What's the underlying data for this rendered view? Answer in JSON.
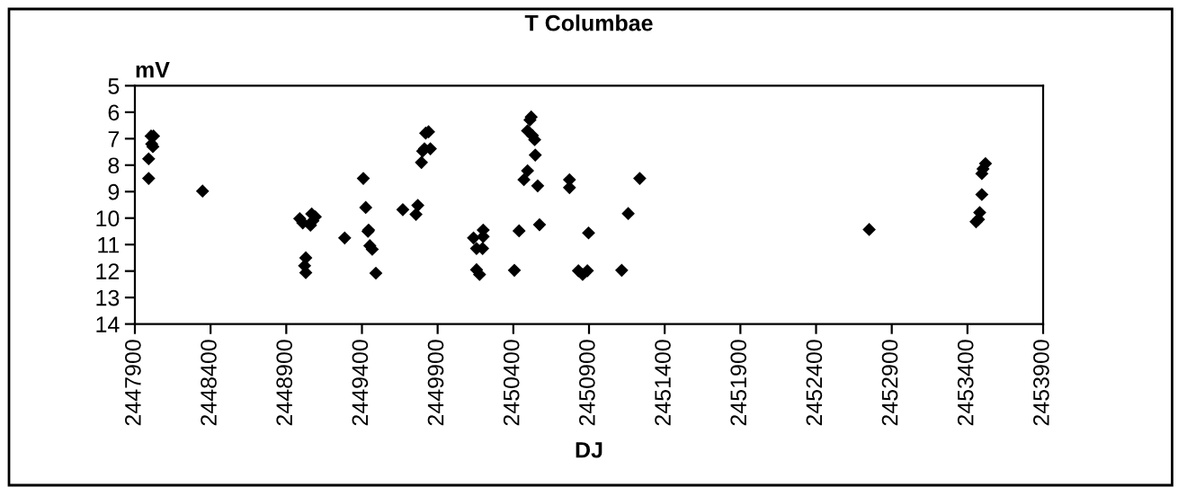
{
  "chart_data": {
    "type": "scatter",
    "title": "T Columbae",
    "xlabel": "DJ",
    "ylabel": "mV",
    "xlim": [
      2447900,
      2453900
    ],
    "xticks": [
      2447900,
      2448400,
      2448900,
      2449400,
      2449900,
      2450400,
      2450900,
      2451400,
      2451900,
      2452400,
      2452900,
      2453400,
      2453900
    ],
    "ylim": [
      14,
      5
    ],
    "yticks": [
      5,
      6,
      7,
      8,
      9,
      10,
      11,
      12,
      13,
      14
    ],
    "marker": "diamond",
    "grid": false,
    "series": [
      {
        "color": "#000000",
        "x": [
          2447991,
          2447991,
          2448007,
          2448023,
          2448011,
          2448019,
          2448347,
          2448989,
          2449009,
          2449068,
          2449076,
          2449060,
          2449092,
          2449029,
          2449021,
          2449029,
          2449286,
          2449409,
          2449425,
          2449440,
          2449444,
          2449452,
          2449468,
          2449492,
          2449670,
          2449769,
          2449757,
          2449793,
          2449801,
          2449813,
          2449852,
          2449821,
          2449840,
          2450137,
          2450157,
          2450197,
          2450157,
          2450177,
          2450201,
          2450201,
          2450407,
          2450438,
          2450470,
          2450494,
          2450518,
          2450510,
          2450494,
          2450526,
          2450541,
          2450545,
          2450561,
          2450573,
          2450771,
          2450771,
          2450830,
          2450858,
          2450889,
          2450897,
          2451116,
          2451159,
          2451235,
          2452751,
          2453457,
          2453473,
          2453481,
          2453495,
          2453495,
          2453503,
          2453519
        ],
        "values": [
          7.76,
          8.5,
          6.9,
          6.9,
          7.2,
          7.3,
          8.98,
          10.02,
          10.18,
          9.84,
          10.1,
          10.27,
          9.95,
          12.06,
          11.8,
          11.5,
          10.75,
          8.5,
          9.6,
          10.5,
          10.45,
          11.04,
          11.18,
          12.08,
          9.68,
          9.52,
          9.86,
          7.9,
          7.47,
          7.38,
          7.38,
          6.79,
          6.74,
          10.75,
          11.15,
          11.15,
          11.95,
          12.13,
          10.7,
          10.45,
          11.97,
          10.48,
          8.55,
          8.21,
          6.18,
          6.29,
          6.7,
          6.88,
          7.04,
          7.62,
          8.78,
          10.25,
          8.55,
          8.85,
          11.99,
          12.13,
          11.99,
          10.56,
          11.97,
          9.83,
          8.5,
          10.43,
          10.14,
          10.05,
          9.79,
          9.11,
          8.32,
          8.14,
          7.94
        ]
      }
    ]
  }
}
